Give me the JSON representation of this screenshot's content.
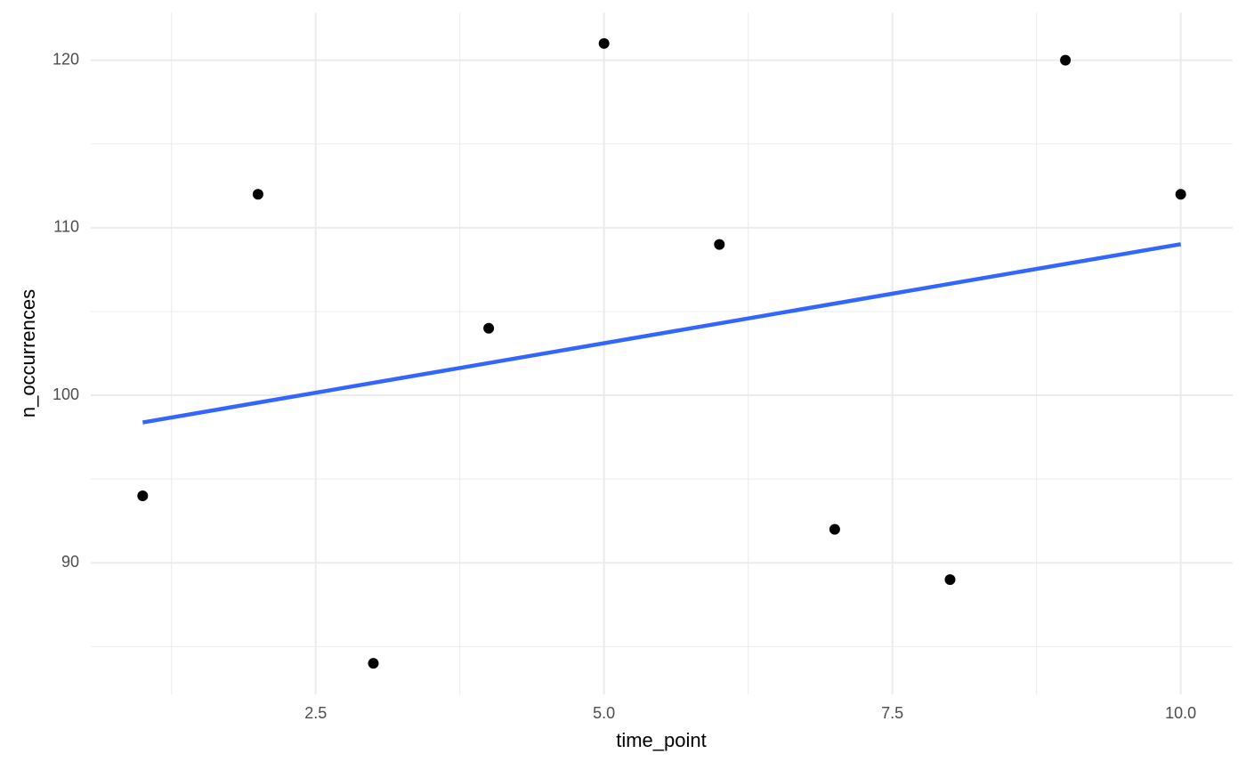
{
  "chart_data": {
    "type": "scatter",
    "x_label": "time_point",
    "y_label": "n_occurrences",
    "xlim": [
      0.55,
      10.45
    ],
    "ylim": [
      82.15,
      122.85
    ],
    "xticks": [
      2.5,
      {
        "value": 5,
        "label": "5.0"
      },
      7.5,
      {
        "value": 10,
        "label": "10.0"
      }
    ],
    "yticks": [
      90,
      100,
      110,
      120
    ],
    "x_minor_grid": [
      1.25,
      3.75,
      6.25,
      8.75
    ],
    "y_minor_grid": [
      85,
      95,
      105,
      115
    ],
    "grid": true,
    "points": {
      "color": "#000000",
      "x": [
        1,
        2,
        3,
        4,
        5,
        6,
        7,
        8,
        9,
        10
      ],
      "values": [
        94,
        112,
        84,
        104,
        121,
        109,
        92,
        89,
        120,
        112
      ]
    },
    "trend": {
      "color": "#3366ff",
      "x": [
        1,
        10
      ],
      "values": [
        98.38,
        109.02
      ]
    }
  }
}
